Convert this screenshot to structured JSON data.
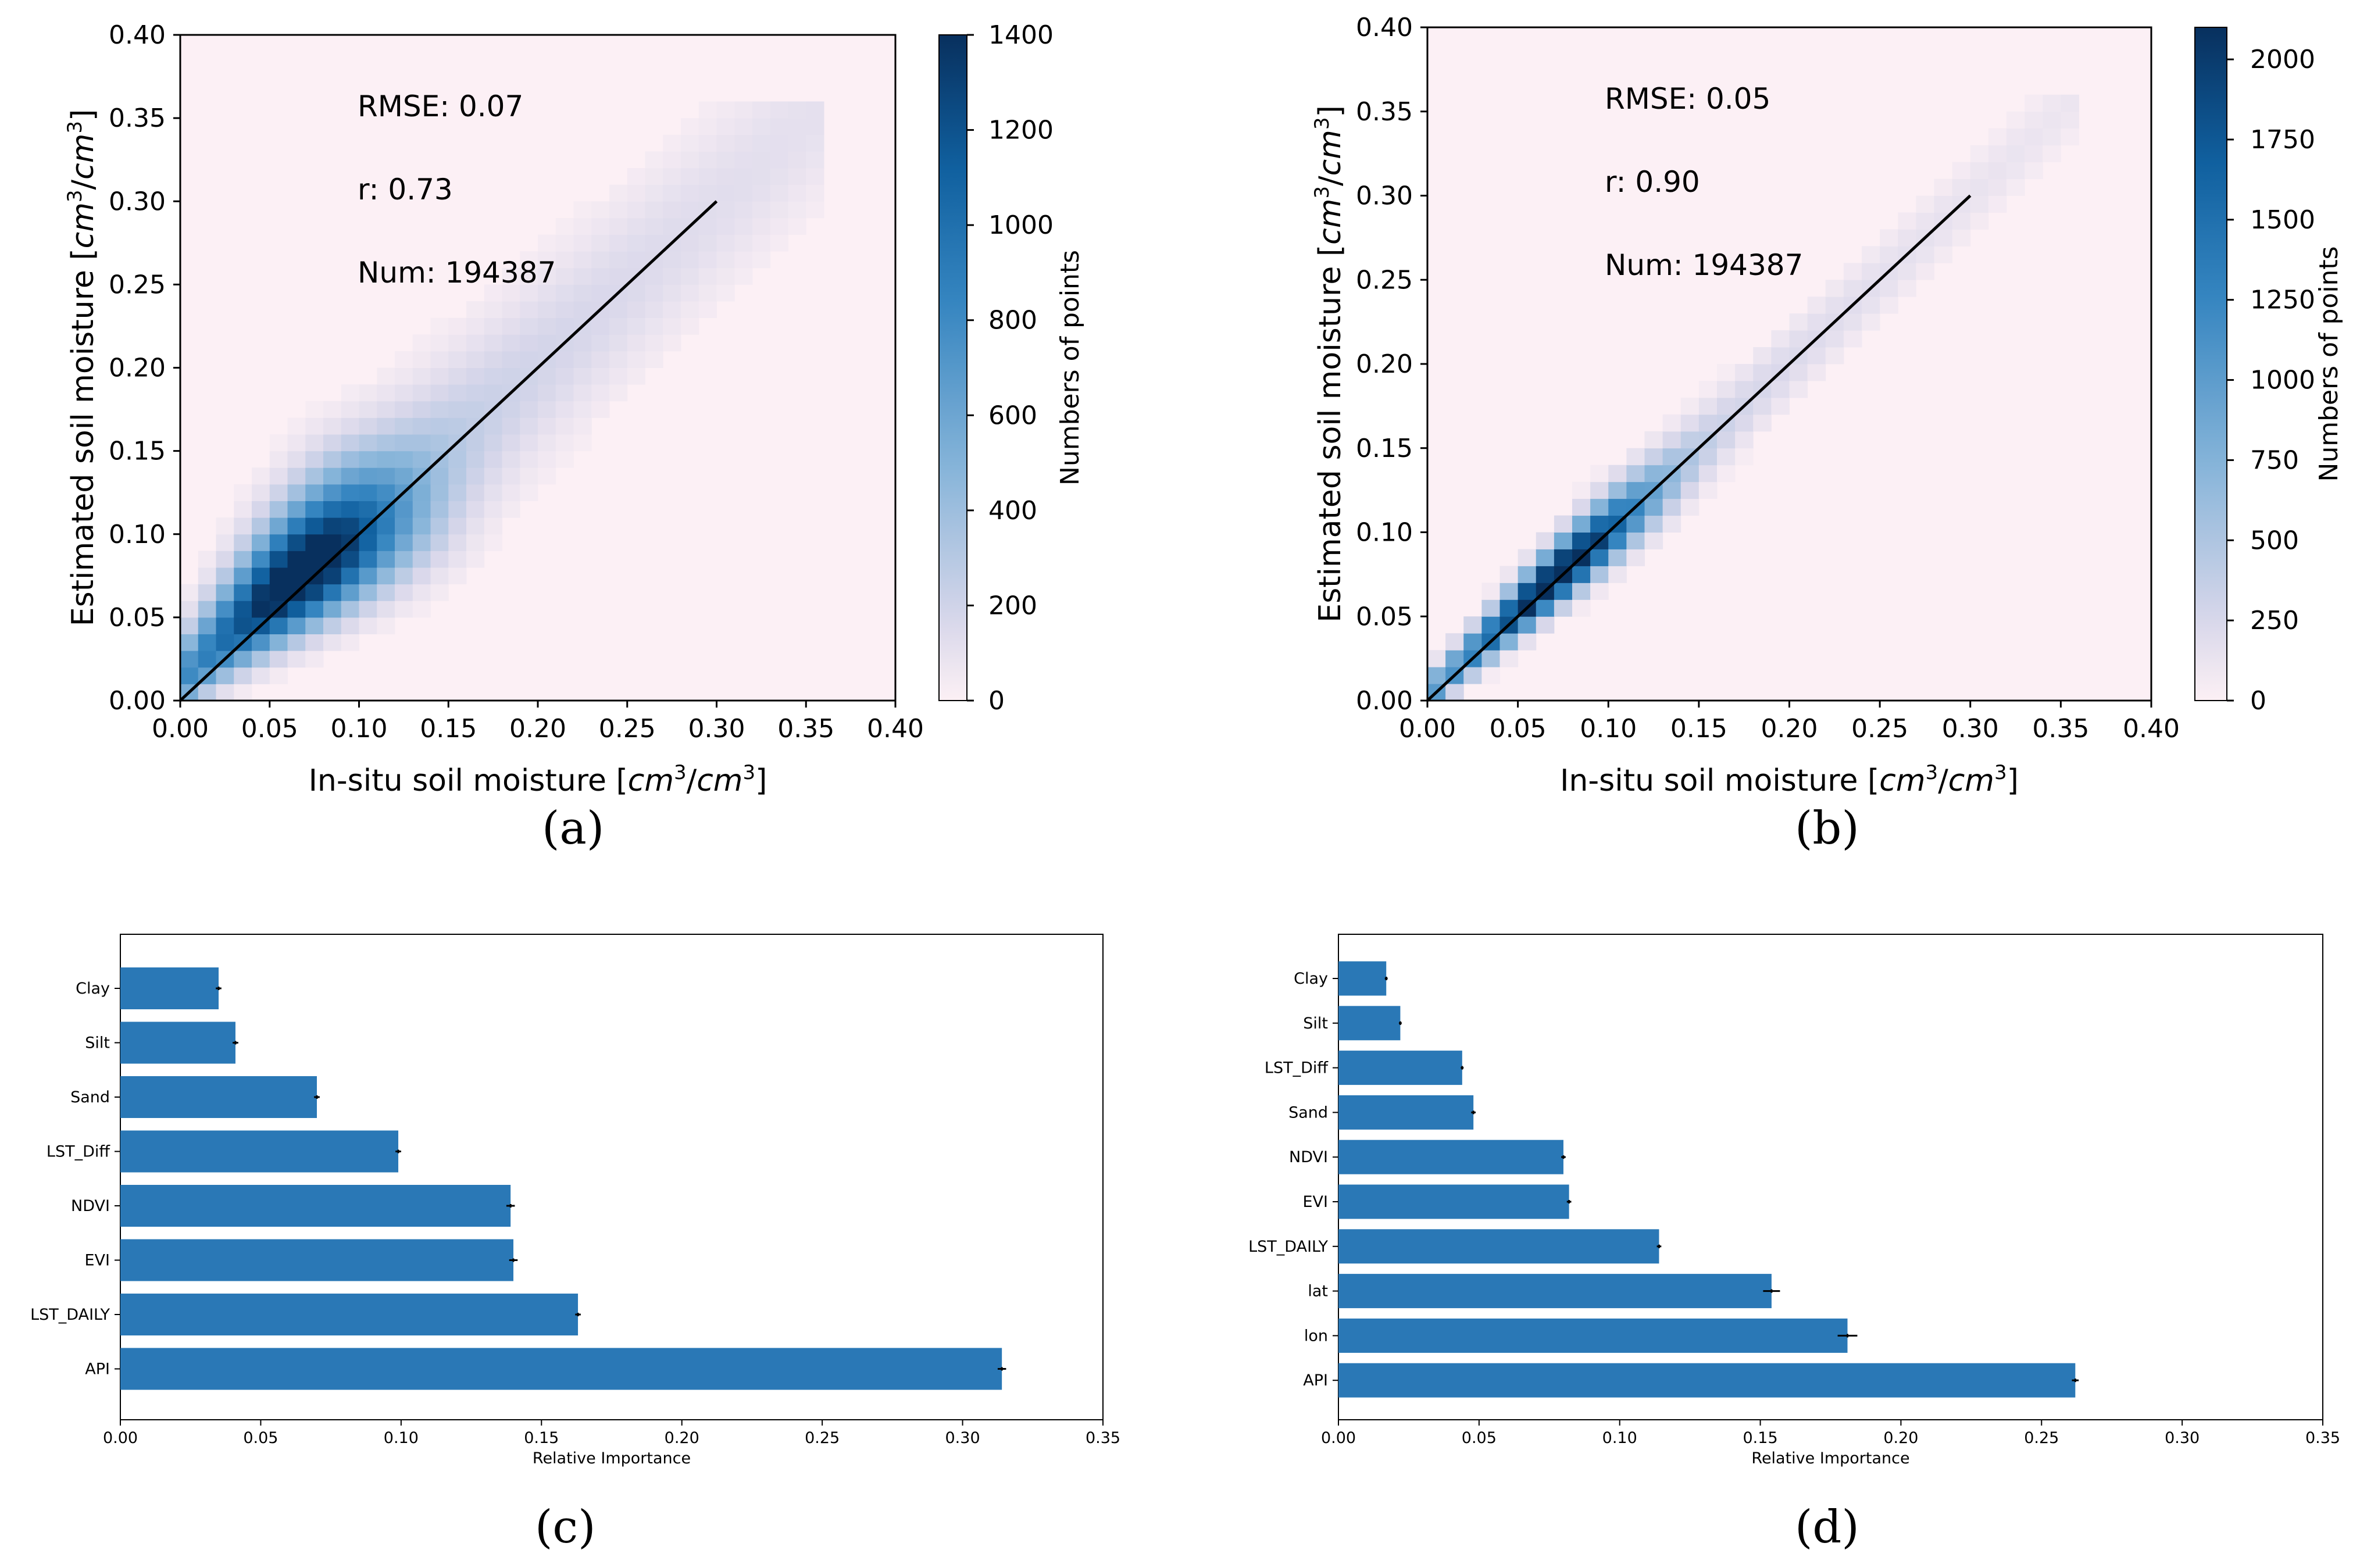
{
  "figure": {
    "panel_labels": [
      "(a)",
      "(b)",
      "(c)",
      "(d)"
    ]
  },
  "colors": {
    "bar": "#2a78b6",
    "heat_low": "#fcf0f5",
    "heat_high": "#08305e",
    "axis": "#000000",
    "one_to_one_line": "#000000"
  },
  "chart_data": [
    {
      "panel": "a",
      "type": "heatmap",
      "xlabel_prefix": "In-situ soil moisture [",
      "ylabel_prefix": "Estimated soil moisture [",
      "unit_base": "cm",
      "unit_exp": "3",
      "xlim": [
        0.0,
        0.4
      ],
      "ylim": [
        0.0,
        0.4
      ],
      "ticks": [
        "0.00",
        "0.05",
        "0.10",
        "0.15",
        "0.20",
        "0.25",
        "0.30",
        "0.35",
        "0.40"
      ],
      "line": {
        "x": [
          0.0,
          0.3
        ],
        "y": [
          0.0,
          0.3
        ]
      },
      "stats": [
        "RMSE: 0.07",
        "r: 0.73",
        "Num: 194387"
      ],
      "colorbar": {
        "label": "Numbers of points",
        "min": 0,
        "max": 1400,
        "ticks": [
          "0",
          "200",
          "400",
          "600",
          "800",
          "1000",
          "1200",
          "1400"
        ]
      },
      "bin_size": 0.01,
      "density": {
        "peak": [
          0.075,
          0.075
        ],
        "peak_value": 1400,
        "spread": 0.55,
        "bias": 0.012,
        "halo": 0.08
      }
    },
    {
      "panel": "b",
      "type": "heatmap",
      "xlabel_prefix": "In-situ soil moisture [",
      "ylabel_prefix": "Estimated soil moisture [",
      "unit_base": "cm",
      "unit_exp": "3",
      "xlim": [
        0.0,
        0.4
      ],
      "ylim": [
        0.0,
        0.4
      ],
      "ticks": [
        "0.00",
        "0.05",
        "0.10",
        "0.15",
        "0.20",
        "0.25",
        "0.30",
        "0.35",
        "0.40"
      ],
      "line": {
        "x": [
          0.0,
          0.3
        ],
        "y": [
          0.0,
          0.3
        ]
      },
      "stats": [
        "RMSE: 0.05",
        "r: 0.90",
        "Num: 194387"
      ],
      "colorbar": {
        "label": "Numbers of points",
        "min": 0,
        "max": 2100,
        "ticks": [
          "0",
          "250",
          "500",
          "750",
          "1000",
          "1250",
          "1500",
          "1750",
          "2000"
        ]
      },
      "bin_size": 0.01,
      "density": {
        "peak": [
          0.075,
          0.075
        ],
        "peak_value": 2100,
        "spread": 0.18,
        "bias": 0.003,
        "halo": 0.04
      }
    },
    {
      "panel": "c",
      "type": "bar",
      "orientation": "horizontal",
      "xlabel": "Relative Importance",
      "xlim": [
        0.0,
        0.35
      ],
      "xticks": [
        "0.00",
        "0.05",
        "0.10",
        "0.15",
        "0.20",
        "0.25",
        "0.30",
        "0.35"
      ],
      "categories": [
        "Clay",
        "Silt",
        "Sand",
        "LST_Diff",
        "NDVI",
        "EVI",
        "LST_DAILY",
        "API"
      ],
      "values": [
        0.035,
        0.041,
        0.07,
        0.099,
        0.139,
        0.14,
        0.163,
        0.314
      ],
      "errors": [
        0.001,
        0.001,
        0.001,
        0.001,
        0.0015,
        0.0015,
        0.001,
        0.0015
      ]
    },
    {
      "panel": "d",
      "type": "bar",
      "orientation": "horizontal",
      "xlabel": "Relative Importance",
      "xlim": [
        0.0,
        0.35
      ],
      "xticks": [
        "0.00",
        "0.05",
        "0.10",
        "0.15",
        "0.20",
        "0.25",
        "0.30",
        "0.35"
      ],
      "categories": [
        "Clay",
        "Silt",
        "LST_Diff",
        "Sand",
        "NDVI",
        "EVI",
        "LST_DAILY",
        "lat",
        "lon",
        "API"
      ],
      "values": [
        0.017,
        0.022,
        0.044,
        0.048,
        0.08,
        0.082,
        0.114,
        0.154,
        0.181,
        0.262
      ],
      "errors": [
        0.0005,
        0.0005,
        0.0005,
        0.0008,
        0.0008,
        0.0008,
        0.0008,
        0.003,
        0.0035,
        0.0012
      ]
    }
  ]
}
